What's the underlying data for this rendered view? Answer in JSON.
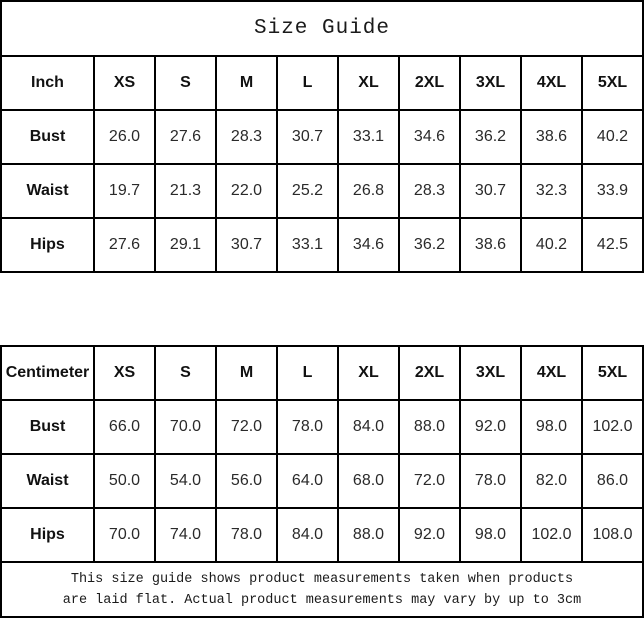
{
  "title": "Size Guide",
  "colors": {
    "border": "#000000",
    "background": "#ffffff",
    "text": "#000000"
  },
  "tables": {
    "inch": {
      "header": [
        "Inch",
        "XS",
        "S",
        "M",
        "L",
        "XL",
        "2XL",
        "3XL",
        "4XL",
        "5XL"
      ],
      "rows": [
        {
          "label": "Bust",
          "values": [
            "26.0",
            "27.6",
            "28.3",
            "30.7",
            "33.1",
            "34.6",
            "36.2",
            "38.6",
            "40.2"
          ]
        },
        {
          "label": "Waist",
          "values": [
            "19.7",
            "21.3",
            "22.0",
            "25.2",
            "26.8",
            "28.3",
            "30.7",
            "32.3",
            "33.9"
          ]
        },
        {
          "label": "Hips",
          "values": [
            "27.6",
            "29.1",
            "30.7",
            "33.1",
            "34.6",
            "36.2",
            "38.6",
            "40.2",
            "42.5"
          ]
        }
      ]
    },
    "cm": {
      "header": [
        "Centimeter",
        "XS",
        "S",
        "M",
        "L",
        "XL",
        "2XL",
        "3XL",
        "4XL",
        "5XL"
      ],
      "rows": [
        {
          "label": "Bust",
          "values": [
            "66.0",
            "70.0",
            "72.0",
            "78.0",
            "84.0",
            "88.0",
            "92.0",
            "98.0",
            "102.0"
          ]
        },
        {
          "label": "Waist",
          "values": [
            "50.0",
            "54.0",
            "56.0",
            "64.0",
            "68.0",
            "72.0",
            "78.0",
            "82.0",
            "86.0"
          ]
        },
        {
          "label": "Hips",
          "values": [
            "70.0",
            "74.0",
            "78.0",
            "84.0",
            "88.0",
            "92.0",
            "98.0",
            "102.0",
            "108.0"
          ]
        }
      ]
    }
  },
  "footer": {
    "line1": "This size guide shows product measurements taken when products",
    "line2": "are laid flat. Actual product measurements may vary by up to 3cm"
  }
}
